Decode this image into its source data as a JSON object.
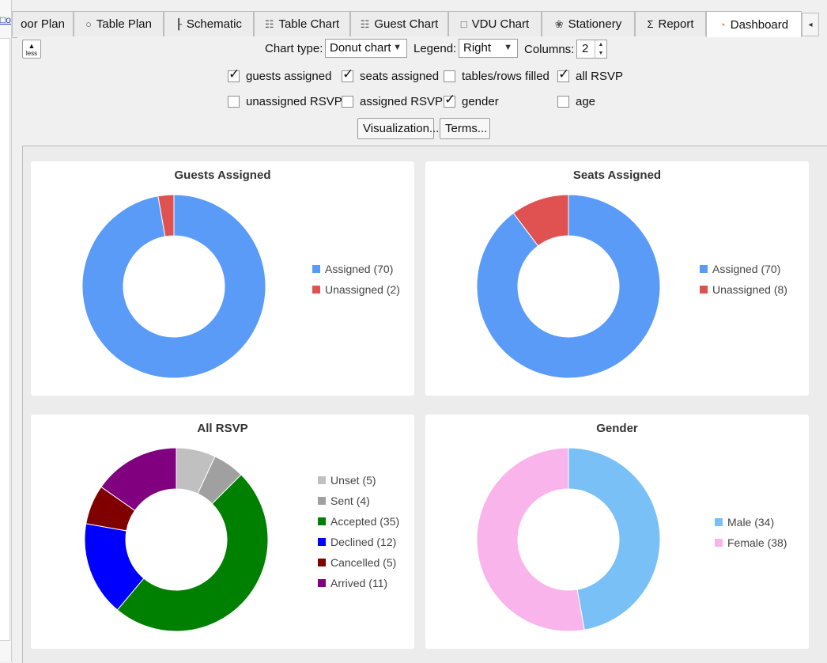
{
  "left_strip": {
    "link_text": "□o"
  },
  "tabs": [
    {
      "label": "oor Plan",
      "icon": ""
    },
    {
      "label": "Table Plan",
      "icon": "○"
    },
    {
      "label": "Schematic",
      "icon": "┠"
    },
    {
      "label": "Table Chart",
      "icon": "☷"
    },
    {
      "label": "Guest Chart",
      "icon": "☷"
    },
    {
      "label": "VDU Chart",
      "icon": "□"
    },
    {
      "label": "Stationery",
      "icon": "❀"
    },
    {
      "label": "Report",
      "icon": "Σ"
    },
    {
      "label": "Dashboard",
      "icon": "◔"
    }
  ],
  "tab_scroll": "◂",
  "controls": {
    "less_label": "less",
    "chart_type_label": "Chart type:",
    "chart_type_value": "Donut chart",
    "legend_label": "Legend:",
    "legend_value": "Right",
    "columns_label": "Columns:",
    "columns_value": "2",
    "checkboxes": [
      {
        "label": "guests assigned",
        "checked": true
      },
      {
        "label": "seats assigned",
        "checked": true
      },
      {
        "label": "tables/rows filled",
        "checked": false
      },
      {
        "label": "all RSVP",
        "checked": true
      },
      {
        "label": "unassigned RSVP",
        "checked": false
      },
      {
        "label": "assigned RSVP",
        "checked": false
      },
      {
        "label": "gender",
        "checked": true
      },
      {
        "label": "age",
        "checked": false
      }
    ],
    "visualization_button": "Visualization...",
    "terms_button": "Terms..."
  },
  "chart_data": [
    {
      "type": "pie",
      "title": "Guests Assigned",
      "legend_position": "right",
      "series": [
        {
          "name": "Assigned",
          "value": 70,
          "color": "#5b9bf8",
          "legend": "Assigned (70)"
        },
        {
          "name": "Unassigned",
          "value": 2,
          "color": "#e05252",
          "legend": "Unassigned (2)"
        }
      ]
    },
    {
      "type": "pie",
      "title": "Seats Assigned",
      "legend_position": "right",
      "series": [
        {
          "name": "Assigned",
          "value": 70,
          "color": "#5b9bf8",
          "legend": "Assigned (70)"
        },
        {
          "name": "Unassigned",
          "value": 8,
          "color": "#e05252",
          "legend": "Unassigned (8)"
        }
      ]
    },
    {
      "type": "pie",
      "title": "All RSVP",
      "legend_position": "right",
      "series": [
        {
          "name": "Unset",
          "value": 5,
          "color": "#c0c0c0",
          "legend": "Unset (5)"
        },
        {
          "name": "Sent",
          "value": 4,
          "color": "#a0a0a0",
          "legend": "Sent (4)"
        },
        {
          "name": "Accepted",
          "value": 35,
          "color": "#008000",
          "legend": "Accepted (35)"
        },
        {
          "name": "Declined",
          "value": 12,
          "color": "#0000ff",
          "legend": "Declined (12)"
        },
        {
          "name": "Cancelled",
          "value": 5,
          "color": "#800000",
          "legend": "Cancelled (5)"
        },
        {
          "name": "Arrived",
          "value": 11,
          "color": "#800080",
          "legend": "Arrived (11)"
        }
      ]
    },
    {
      "type": "pie",
      "title": "Gender",
      "legend_position": "right",
      "series": [
        {
          "name": "Male",
          "value": 34,
          "color": "#78c0f5",
          "legend": "Male (34)"
        },
        {
          "name": "Female",
          "value": 38,
          "color": "#fab4ec",
          "legend": "Female (38)"
        }
      ]
    }
  ]
}
